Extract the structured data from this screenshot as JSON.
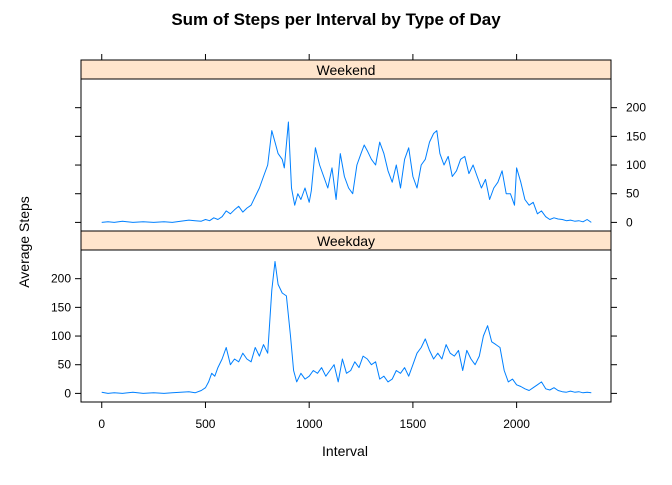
{
  "chart_data": {
    "type": "line",
    "title": "Sum of Steps per Interval by Type of Day",
    "xlabel": "Interval",
    "ylabel": "Average Steps",
    "xlim": [
      -100,
      2455
    ],
    "ylim": [
      -15,
      250
    ],
    "x_ticks": [
      0,
      500,
      1000,
      1500,
      2000
    ],
    "y_ticks": [
      0,
      50,
      100,
      150,
      200
    ],
    "grid": false,
    "line_color": "#0080ff",
    "strip_color": "#ffe5cc",
    "panels": [
      {
        "name": "Weekend",
        "series": [
          {
            "x": [
              0,
              30,
              60,
              100,
              150,
              200,
              250,
              300,
              340,
              380,
              420,
              450,
              480,
              500,
              520,
              540,
              560,
              580,
              600,
              620,
              640,
              660,
              680,
              700,
              720,
              740,
              760,
              780,
              800,
              820,
              835,
              850,
              870,
              880,
              900,
              915,
              930,
              945,
              960,
              980,
              1000,
              1010,
              1030,
              1050,
              1070,
              1090,
              1110,
              1130,
              1150,
              1170,
              1190,
              1210,
              1230,
              1250,
              1265,
              1280,
              1300,
              1320,
              1340,
              1360,
              1380,
              1400,
              1420,
              1440,
              1460,
              1480,
              1500,
              1520,
              1540,
              1560,
              1580,
              1600,
              1615,
              1630,
              1650,
              1670,
              1690,
              1710,
              1730,
              1750,
              1770,
              1790,
              1810,
              1830,
              1850,
              1870,
              1890,
              1910,
              1930,
              1950,
              1970,
              1990,
              2000,
              2020,
              2040,
              2060,
              2080,
              2100,
              2120,
              2140,
              2160,
              2180,
              2200,
              2220,
              2240,
              2260,
              2280,
              2300,
              2320,
              2340,
              2360
            ],
            "y": [
              0,
              1,
              0,
              2,
              0,
              1,
              0,
              1,
              0,
              2,
              4,
              3,
              2,
              5,
              3,
              8,
              5,
              10,
              20,
              15,
              22,
              28,
              18,
              25,
              30,
              45,
              60,
              80,
              100,
              160,
              140,
              120,
              110,
              95,
              175,
              60,
              30,
              50,
              40,
              60,
              35,
              55,
              130,
              100,
              80,
              60,
              95,
              40,
              120,
              80,
              60,
              50,
              100,
              120,
              135,
              125,
              110,
              100,
              140,
              120,
              90,
              70,
              100,
              60,
              110,
              130,
              80,
              60,
              100,
              110,
              140,
              155,
              160,
              120,
              100,
              115,
              80,
              90,
              110,
              115,
              85,
              100,
              80,
              60,
              75,
              40,
              60,
              70,
              90,
              50,
              50,
              30,
              95,
              70,
              40,
              30,
              35,
              15,
              20,
              10,
              5,
              8,
              6,
              5,
              3,
              4,
              2,
              3,
              1,
              5,
              0
            ]
          }
        ]
      },
      {
        "name": "Weekday",
        "series": [
          {
            "x": [
              0,
              30,
              60,
              100,
              150,
              200,
              250,
              300,
              340,
              380,
              420,
              450,
              480,
              500,
              515,
              530,
              545,
              560,
              580,
              600,
              620,
              640,
              660,
              680,
              700,
              720,
              740,
              760,
              780,
              800,
              820,
              835,
              850,
              870,
              890,
              910,
              925,
              940,
              960,
              980,
              1000,
              1020,
              1040,
              1060,
              1080,
              1100,
              1120,
              1140,
              1160,
              1180,
              1200,
              1220,
              1240,
              1260,
              1280,
              1300,
              1320,
              1340,
              1360,
              1380,
              1400,
              1420,
              1440,
              1460,
              1480,
              1500,
              1520,
              1540,
              1560,
              1580,
              1600,
              1620,
              1640,
              1660,
              1680,
              1700,
              1720,
              1740,
              1760,
              1780,
              1800,
              1820,
              1840,
              1860,
              1880,
              1900,
              1920,
              1940,
              1960,
              1980,
              2000,
              2020,
              2040,
              2060,
              2080,
              2100,
              2120,
              2140,
              2160,
              2180,
              2200,
              2220,
              2240,
              2260,
              2280,
              2300,
              2320,
              2340,
              2360
            ],
            "y": [
              2,
              0,
              1,
              0,
              2,
              0,
              1,
              0,
              1,
              2,
              3,
              1,
              5,
              10,
              20,
              35,
              30,
              45,
              60,
              80,
              50,
              60,
              55,
              70,
              60,
              55,
              80,
              65,
              85,
              70,
              180,
              230,
              190,
              175,
              170,
              100,
              40,
              20,
              35,
              25,
              30,
              40,
              35,
              45,
              30,
              40,
              50,
              20,
              60,
              35,
              40,
              55,
              45,
              65,
              60,
              50,
              55,
              25,
              30,
              20,
              25,
              40,
              35,
              45,
              30,
              50,
              70,
              80,
              95,
              75,
              60,
              70,
              60,
              85,
              70,
              65,
              75,
              40,
              75,
              60,
              50,
              65,
              100,
              118,
              90,
              85,
              80,
              40,
              20,
              25,
              15,
              12,
              8,
              5,
              10,
              15,
              20,
              8,
              6,
              10,
              5,
              3,
              2,
              4,
              2,
              3,
              1,
              2,
              1
            ]
          }
        ]
      }
    ]
  }
}
